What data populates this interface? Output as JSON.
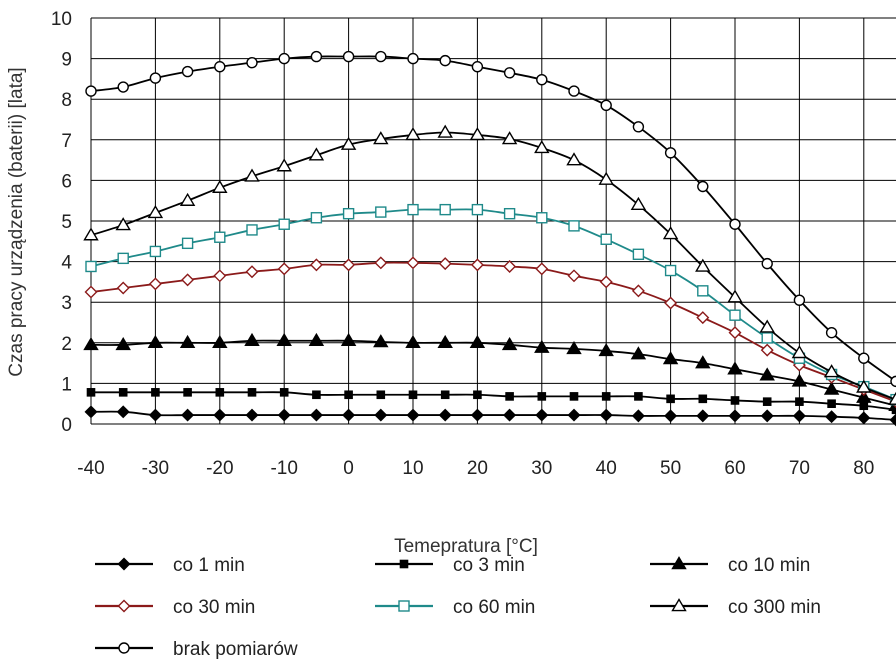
{
  "chart_data": {
    "type": "line",
    "xlabel": "Temepratura [°C]",
    "ylabel": "Czas pracy urządzenia (baterii) [lata]",
    "xlim": [
      -40,
      85
    ],
    "ylim": [
      0,
      10
    ],
    "x_ticks": [
      -40,
      -30,
      -20,
      -10,
      0,
      10,
      20,
      30,
      40,
      50,
      60,
      70,
      80
    ],
    "y_ticks": [
      0,
      1,
      2,
      3,
      4,
      5,
      6,
      7,
      8,
      9,
      10
    ],
    "grid": true,
    "legend_position": "bottom",
    "x": [
      -40,
      -35,
      -30,
      -25,
      -20,
      -15,
      -10,
      -5,
      0,
      5,
      10,
      15,
      20,
      25,
      30,
      35,
      40,
      45,
      50,
      55,
      60,
      65,
      70,
      75,
      80,
      85
    ],
    "series": [
      {
        "name": "co 1 min",
        "color": "#000000",
        "marker": "diamond-filled",
        "values": [
          0.3,
          0.3,
          0.22,
          0.22,
          0.22,
          0.22,
          0.22,
          0.22,
          0.22,
          0.22,
          0.22,
          0.22,
          0.22,
          0.22,
          0.22,
          0.22,
          0.22,
          0.2,
          0.2,
          0.2,
          0.2,
          0.2,
          0.2,
          0.18,
          0.15,
          0.1
        ]
      },
      {
        "name": "co 3 min",
        "color": "#000000",
        "marker": "square-filled",
        "values": [
          0.78,
          0.78,
          0.78,
          0.78,
          0.78,
          0.78,
          0.78,
          0.72,
          0.72,
          0.72,
          0.72,
          0.72,
          0.72,
          0.68,
          0.68,
          0.68,
          0.68,
          0.68,
          0.62,
          0.62,
          0.58,
          0.55,
          0.55,
          0.5,
          0.45,
          0.35
        ]
      },
      {
        "name": "co 10 min",
        "color": "#000000",
        "marker": "triangle-filled",
        "values": [
          1.95,
          1.95,
          2.0,
          2.0,
          2.0,
          2.05,
          2.05,
          2.05,
          2.05,
          2.02,
          2.0,
          2.0,
          2.0,
          1.95,
          1.88,
          1.85,
          1.8,
          1.72,
          1.6,
          1.5,
          1.35,
          1.2,
          1.05,
          0.85,
          0.65,
          0.45
        ]
      },
      {
        "name": "co 30 min",
        "color": "#8b1a1a",
        "marker": "diamond-open",
        "values": [
          3.25,
          3.35,
          3.45,
          3.55,
          3.65,
          3.75,
          3.82,
          3.92,
          3.92,
          3.97,
          3.97,
          3.95,
          3.92,
          3.88,
          3.82,
          3.65,
          3.5,
          3.28,
          2.98,
          2.62,
          2.25,
          1.82,
          1.45,
          1.15,
          0.85,
          0.55
        ]
      },
      {
        "name": "co 60 min",
        "color": "#1f8a8a",
        "marker": "square-open",
        "values": [
          3.88,
          4.08,
          4.25,
          4.45,
          4.6,
          4.78,
          4.92,
          5.08,
          5.18,
          5.22,
          5.28,
          5.28,
          5.28,
          5.18,
          5.08,
          4.88,
          4.55,
          4.18,
          3.78,
          3.28,
          2.68,
          2.12,
          1.62,
          1.22,
          0.92,
          0.6
        ]
      },
      {
        "name": "co 300 min",
        "color": "#000000",
        "marker": "triangle-open",
        "values": [
          4.65,
          4.9,
          5.2,
          5.5,
          5.82,
          6.1,
          6.35,
          6.62,
          6.88,
          7.02,
          7.12,
          7.18,
          7.12,
          7.02,
          6.8,
          6.5,
          6.02,
          5.4,
          4.68,
          3.88,
          3.12,
          2.38,
          1.75,
          1.28,
          0.9,
          0.6
        ]
      },
      {
        "name": "brak pomiarów",
        "color": "#000000",
        "marker": "circle-open",
        "values": [
          8.2,
          8.3,
          8.52,
          8.68,
          8.8,
          8.9,
          9.0,
          9.05,
          9.05,
          9.05,
          9.0,
          8.95,
          8.8,
          8.65,
          8.48,
          8.2,
          7.85,
          7.32,
          6.68,
          5.85,
          4.92,
          3.95,
          3.05,
          2.25,
          1.62,
          1.05
        ]
      }
    ]
  }
}
